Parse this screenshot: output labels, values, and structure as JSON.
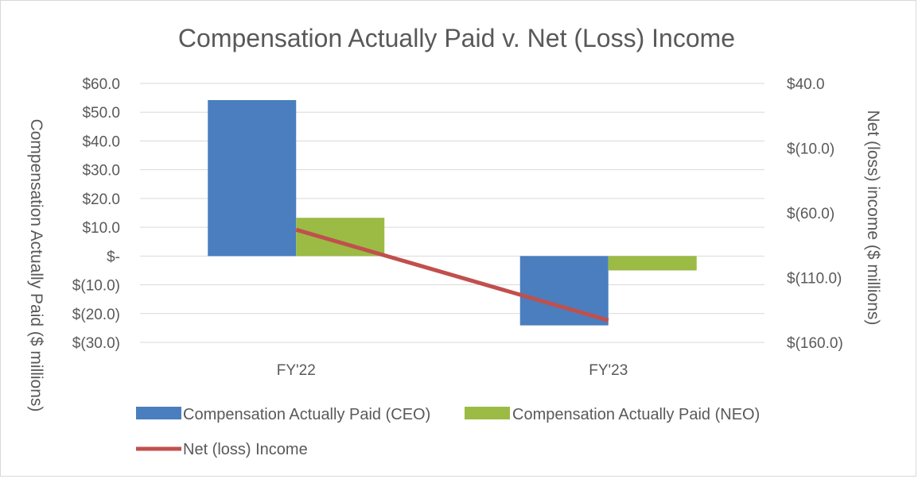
{
  "chart_data": {
    "type": "bar",
    "title": "Compensation Actually Paid v. Net (Loss) Income",
    "categories": [
      "FY'22",
      "FY'23"
    ],
    "series": [
      {
        "name": "Compensation Actually Paid (CEO)",
        "kind": "bar",
        "axis": "left",
        "color": "#4a7ebf",
        "values": [
          54.2,
          -24.1
        ]
      },
      {
        "name": "Compensation Actually Paid (NEO)",
        "kind": "bar",
        "axis": "left",
        "color": "#9bbb45",
        "values": [
          13.3,
          -5.0
        ]
      },
      {
        "name": "Net (loss) Income",
        "kind": "line",
        "axis": "right",
        "color": "#c0504d",
        "values": [
          -73.0,
          -143.0
        ]
      }
    ],
    "ylabel": "Compensation Actually Paid ($ millions)",
    "y2label": "Net (loss) income ($ millions)",
    "ylim": [
      -30,
      60
    ],
    "y2lim": [
      -160,
      40
    ],
    "yticks": [
      60,
      50,
      40,
      30,
      20,
      10,
      0,
      -10,
      -20,
      -30
    ],
    "ytick_labels": [
      "$60.0",
      "$50.0",
      "$40.0",
      "$30.0",
      "$20.0",
      "$10.0",
      "$-",
      "$(10.0)",
      "$(20.0)",
      "$(30.0)"
    ],
    "y2ticks": [
      40,
      -10,
      -60,
      -110,
      -160
    ],
    "y2tick_labels": [
      "$40.0",
      "$(10.0)",
      "$(60.0)",
      "$(110.0)",
      "$(160.0)"
    ],
    "grid": true,
    "legend_position": "bottom"
  }
}
